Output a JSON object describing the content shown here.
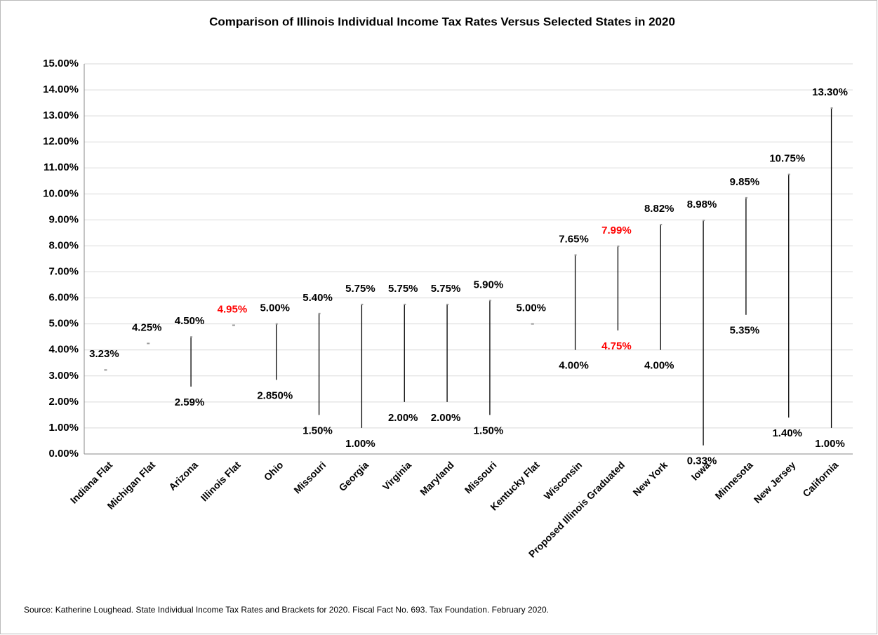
{
  "chart_data": {
    "type": "range",
    "title": "Comparison of Illinois Individual Income Tax Rates Versus Selected States in 2020",
    "source": "Source: Katherine Loughead. State Individual Income Tax Rates and Brackets for 2020. Fiscal Fact No. 693. Tax Foundation. February 2020.",
    "categories": [
      "Indiana Flat",
      "Michigan Flat",
      "Arizona",
      "Illinois Flat",
      "Ohio",
      "Missouri",
      "Georgia",
      "Virginia",
      "Maryland",
      "Missouri",
      "Kentucky Flat",
      "Wisconsin",
      "Proposed Illinois Graduated",
      "New York",
      "Iowa",
      "Minnesota",
      "New Jersey",
      "California"
    ],
    "high": [
      3.23,
      4.25,
      4.5,
      4.95,
      5.0,
      5.4,
      5.75,
      5.75,
      5.75,
      5.9,
      5.0,
      7.65,
      7.99,
      8.82,
      8.98,
      9.85,
      10.75,
      13.3
    ],
    "high_labels": [
      "3.23%",
      "4.25%",
      "4.50%",
      "4.95%",
      "5.00%",
      "5.40%",
      "5.75%",
      "5.75%",
      "5.75%",
      "5.90%",
      "5.00%",
      "7.65%",
      "7.99%",
      "8.82%",
      "8.98%",
      "9.85%",
      "10.75%",
      "13.30%"
    ],
    "low": [
      null,
      null,
      2.59,
      null,
      2.85,
      1.5,
      1.0,
      2.0,
      2.0,
      1.5,
      null,
      4.0,
      4.75,
      4.0,
      0.33,
      5.35,
      1.4,
      1.0
    ],
    "low_labels": [
      null,
      null,
      "2.59%",
      null,
      "2.850%",
      "1.50%",
      "1.00%",
      "2.00%",
      "2.00%",
      "1.50%",
      null,
      "4.00%",
      "4.75%",
      "4.00%",
      "0.33%",
      "5.35%",
      "1.40%",
      "1.00%"
    ],
    "label_colors": [
      "#000000",
      "#000000",
      "#000000",
      "#ff0000",
      "#000000",
      "#000000",
      "#000000",
      "#000000",
      "#000000",
      "#000000",
      "#000000",
      "#000000",
      "#ff0000",
      "#000000",
      "#000000",
      "#000000",
      "#000000",
      "#000000"
    ],
    "color": "#000000",
    "ylim": [
      0,
      15
    ],
    "yticks": [
      {
        "value": 0,
        "label": "0.00%"
      },
      {
        "value": 1,
        "label": "1.00%"
      },
      {
        "value": 2,
        "label": "2.00%"
      },
      {
        "value": 3,
        "label": "3.00%"
      },
      {
        "value": 4,
        "label": "4.00%"
      },
      {
        "value": 5,
        "label": "5.00%"
      },
      {
        "value": 6,
        "label": "6.00%"
      },
      {
        "value": 7,
        "label": "7.00%"
      },
      {
        "value": 8,
        "label": "8.00%"
      },
      {
        "value": 9,
        "label": "9.00%"
      },
      {
        "value": 10,
        "label": "10.00%"
      },
      {
        "value": 11,
        "label": "11.00%"
      },
      {
        "value": 12,
        "label": "12.00%"
      },
      {
        "value": 13,
        "label": "13.00%"
      },
      {
        "value": 14,
        "label": "14.00%"
      },
      {
        "value": 15,
        "label": "15.00%"
      }
    ],
    "grid": true
  }
}
